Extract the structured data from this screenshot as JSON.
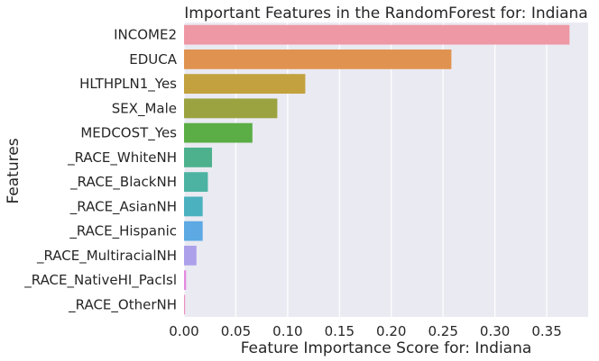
{
  "chart_data": {
    "type": "bar",
    "orientation": "horizontal",
    "title": "Important Features in the RandomForest for: Indiana",
    "xlabel": "Feature Importance Score for: Indiana",
    "ylabel": "Features",
    "categories": [
      "INCOME2",
      "EDUCA",
      "HLTHPLN1_Yes",
      "SEX_Male",
      "MEDCOST_Yes",
      "_RACE_WhiteNH",
      "_RACE_BlackNH",
      "_RACE_AsianNH",
      "_RACE_Hispanic",
      "_RACE_MultiracialNH",
      "_RACE_NativeHI_PacIsl",
      "_RACE_OtherNH"
    ],
    "values": [
      0.372,
      0.258,
      0.117,
      0.09,
      0.066,
      0.027,
      0.023,
      0.018,
      0.018,
      0.012,
      0.002,
      0.001
    ],
    "colors": [
      "#ee98a5",
      "#e09350",
      "#c3a13e",
      "#9aa33f",
      "#5bae46",
      "#4db18d",
      "#4cb3a3",
      "#4cb1bf",
      "#5ca9e3",
      "#ada0ea",
      "#e48ae0",
      "#ec8fbe"
    ],
    "xlim": [
      0,
      0.39
    ],
    "xticks": [
      "0.00",
      "0.05",
      "0.10",
      "0.15",
      "0.20",
      "0.25",
      "0.30",
      "0.35"
    ],
    "grid": true,
    "background": "#eaeaf2"
  }
}
